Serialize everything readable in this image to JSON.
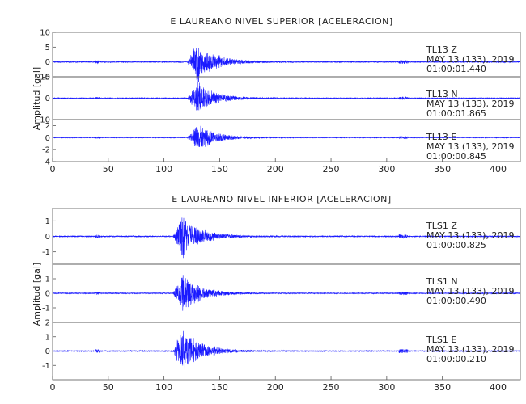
{
  "chart_data": [
    {
      "type": "line",
      "title": "E LAUREANO NIVEL SUPERIOR [ACELERACION]",
      "ylabel": "Amplitud [gal]",
      "xlabel": "",
      "xlim": [
        0,
        420
      ],
      "xticks": [
        "0",
        "50",
        "100",
        "150",
        "200",
        "250",
        "300",
        "350",
        "400"
      ],
      "line_color": "#1a1aff",
      "grid": false,
      "panels": [
        {
          "station": "TL13",
          "component": "Z",
          "date": "MAY 13 (133), 2019",
          "time": "01:00:01.440",
          "ylim": [
            -5,
            10
          ],
          "yticks": [
            "10",
            "5",
            "0",
            "-5"
          ],
          "onset_s": 121,
          "peak_s": 130,
          "peak_amp": 7.5
        },
        {
          "station": "TL13",
          "component": "N",
          "date": "MAY 13 (133), 2019",
          "time": "01:00:01.865",
          "ylim": [
            -10,
            10
          ],
          "yticks": [
            "10",
            "0",
            "-10"
          ],
          "onset_s": 121,
          "peak_s": 130,
          "peak_amp": 8
        },
        {
          "station": "TL13",
          "component": "E",
          "date": "MAY 13 (133), 2019",
          "time": "01:00:00.845",
          "ylim": [
            -4,
            3
          ],
          "yticks": [
            "2",
            "0",
            "-2",
            "-4"
          ],
          "onset_s": 121,
          "peak_s": 130,
          "peak_amp": 2.5
        }
      ]
    },
    {
      "type": "line",
      "title": "E LAUREANO NIVEL INFERIOR [ACELERACION]",
      "ylabel": "Amplitud [gal]",
      "xlabel": "",
      "xlim": [
        0,
        420
      ],
      "xticks": [
        "0",
        "50",
        "100",
        "150",
        "200",
        "250",
        "300",
        "350",
        "400"
      ],
      "line_color": "#1a1aff",
      "grid": false,
      "panels": [
        {
          "station": "TLS1",
          "component": "Z",
          "date": "MAY 13 (133), 2019",
          "time": "01:00:00.825",
          "ylim": [
            -1.8,
            1.8
          ],
          "yticks": [
            "1",
            "0",
            "-1"
          ],
          "onset_s": 108,
          "peak_s": 117,
          "peak_amp": 1.5
        },
        {
          "station": "TLS1",
          "component": "N",
          "date": "MAY 13 (133), 2019",
          "time": "01:00:00.490",
          "ylim": [
            -2,
            2
          ],
          "yticks": [
            "1",
            "0",
            "-1"
          ],
          "onset_s": 108,
          "peak_s": 117,
          "peak_amp": 1.4
        },
        {
          "station": "TLS1",
          "component": "E",
          "date": "MAY 13 (133), 2019",
          "time": "01:00:00.210",
          "ylim": [
            -2,
            2
          ],
          "yticks": [
            "2",
            "1",
            "0",
            "-1"
          ],
          "onset_s": 108,
          "peak_s": 117,
          "peak_amp": 1.7
        }
      ]
    }
  ]
}
